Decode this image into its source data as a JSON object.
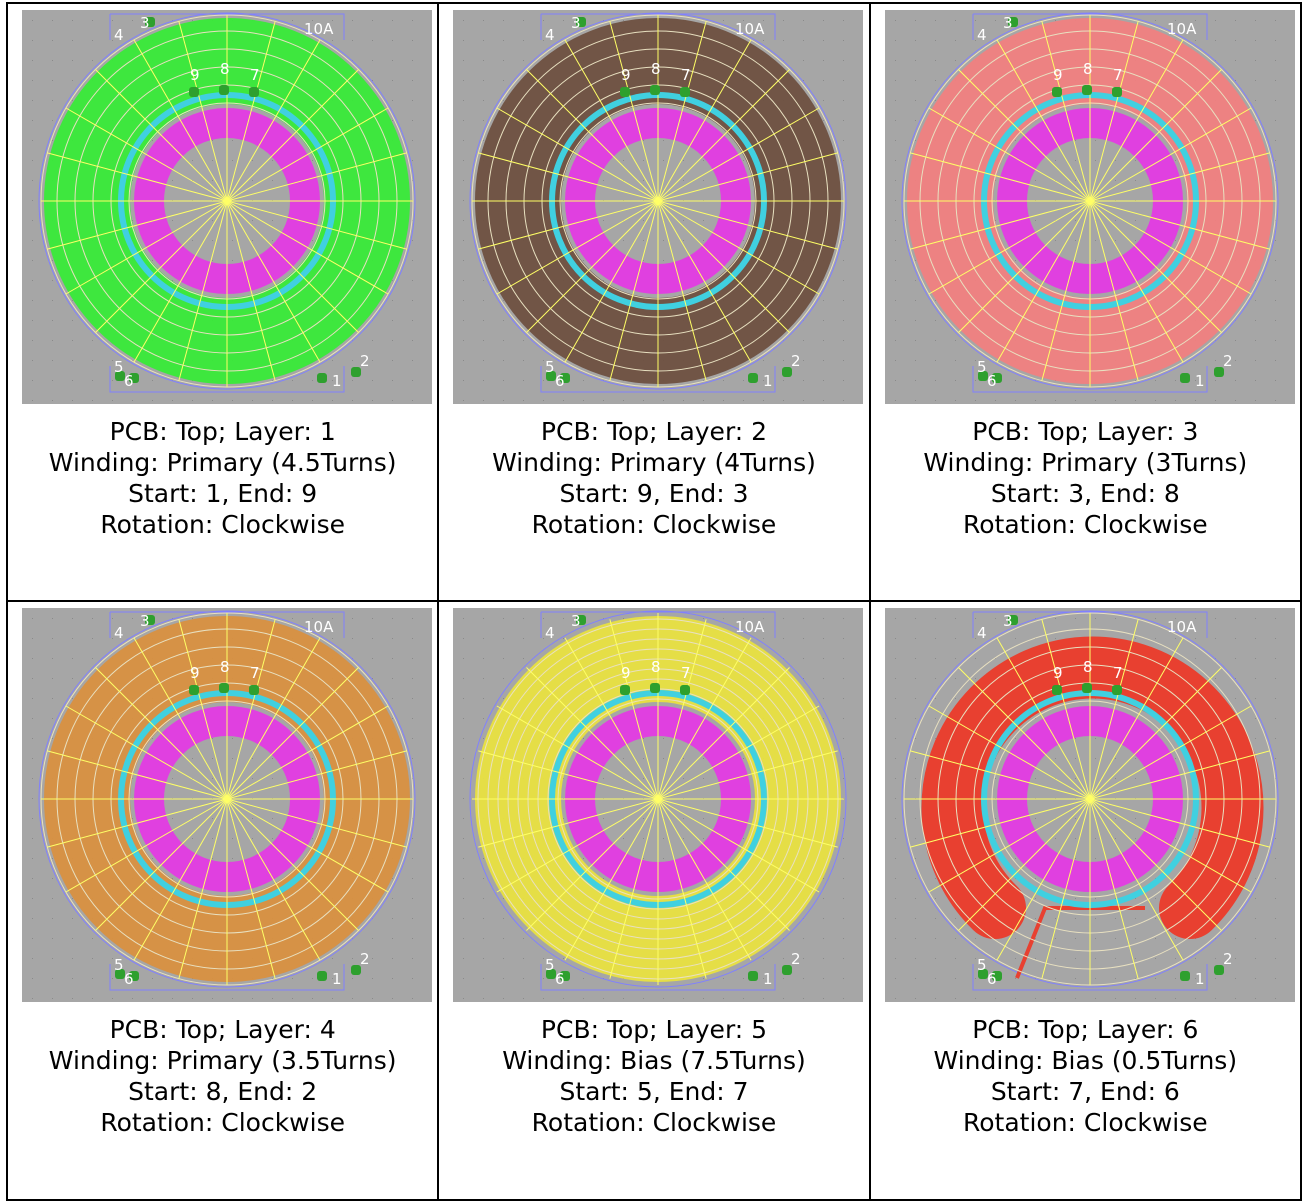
{
  "pin_labels": {
    "p3": "3",
    "p4": "4",
    "p10A": "10A",
    "p9": "9",
    "p8": "8",
    "p7": "7",
    "p5": "5",
    "p6": "6",
    "p1": "1",
    "p2": "2"
  },
  "colors": {
    "background": "#a6a6a6",
    "core": "#e040e0",
    "inner_ring": "#40d0e0",
    "outline": "#ffff66",
    "pad": "#2ea02e",
    "board_outline": "#8080ff"
  },
  "panels": [
    {
      "layer_color": "#33ee33",
      "layer_opacity": 0.9,
      "winding_style": "rings",
      "caption": {
        "pcb": "PCB: Top; Layer: 1",
        "winding": "Winding: Primary (4.5Turns)",
        "pins": "Start: 1, End: 9",
        "rotation": "Rotation: Clockwise"
      }
    },
    {
      "layer_color": "#6e5040",
      "layer_opacity": 0.95,
      "winding_style": "rings",
      "caption": {
        "pcb": "PCB: Top; Layer: 2",
        "winding": "Winding: Primary (4Turns)",
        "pins": "Start: 9, End: 3",
        "rotation": "Rotation: Clockwise"
      }
    },
    {
      "layer_color": "#f08080",
      "layer_opacity": 0.95,
      "winding_style": "rings",
      "caption": {
        "pcb": "PCB: Top; Layer: 3",
        "winding": "Winding: Primary (3Turns)",
        "pins": "Start: 3, End: 8",
        "rotation": "Rotation: Clockwise"
      }
    },
    {
      "layer_color": "#d89040",
      "layer_opacity": 0.95,
      "winding_style": "rings",
      "caption": {
        "pcb": "PCB: Top; Layer: 4",
        "winding": "Winding: Primary (3.5Turns)",
        "pins": "Start: 8, End: 2",
        "rotation": "Rotation: Clockwise"
      }
    },
    {
      "layer_color": "#e8e040",
      "layer_opacity": 0.95,
      "winding_style": "thin",
      "caption": {
        "pcb": "PCB: Top; Layer: 5",
        "winding": "Winding: Bias (7.5Turns)",
        "pins": "Start: 5, End: 7",
        "rotation": "Rotation: Clockwise"
      }
    },
    {
      "layer_color": "#e84030",
      "layer_opacity": 1.0,
      "winding_style": "c-shape",
      "caption": {
        "pcb": "PCB: Top; Layer: 6",
        "winding": "Winding: Bias (0.5Turns)",
        "pins": "Start: 7, End: 6",
        "rotation": "Rotation: Clockwise"
      }
    }
  ]
}
